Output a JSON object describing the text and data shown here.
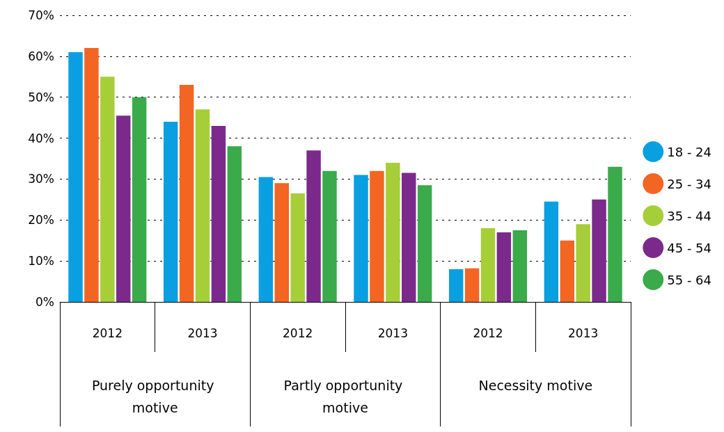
{
  "chart_data": {
    "type": "bar",
    "categories": [
      "2012",
      "2013",
      "2012",
      "2013",
      "2012",
      "2013"
    ],
    "annotations": [
      "Purely opportunity motive",
      "Partly opportunity motive",
      "Necessity motive"
    ],
    "series": [
      {
        "name": "18 - 24",
        "color": "#0a9fe0",
        "values": [
          61,
          44,
          30.5,
          31,
          8,
          24.5
        ]
      },
      {
        "name": "25 - 34",
        "color": "#f26522",
        "values": [
          62,
          53,
          29,
          32,
          8.2,
          15
        ]
      },
      {
        "name": "35 - 44",
        "color": "#a6ce39",
        "values": [
          55,
          47,
          26.5,
          34,
          18,
          19
        ]
      },
      {
        "name": "45 - 54",
        "color": "#7b2a8c",
        "values": [
          45.5,
          43,
          37,
          31.5,
          17,
          25
        ]
      },
      {
        "name": "55 - 64",
        "color": "#3aaa4a",
        "values": [
          50,
          38,
          32,
          28.5,
          17.5,
          33
        ]
      }
    ],
    "ylim": [
      0,
      70
    ],
    "yticks": [
      {
        "value": 0,
        "label": "0%"
      },
      {
        "value": 10,
        "label": "10%"
      },
      {
        "value": 20,
        "label": "20%"
      },
      {
        "value": 30,
        "label": "30%"
      },
      {
        "value": 40,
        "label": "40%"
      },
      {
        "value": 50,
        "label": "50%"
      },
      {
        "value": 60,
        "label": "60%"
      },
      {
        "value": 70,
        "label": "70%"
      }
    ],
    "grid": "y",
    "legend": "right"
  }
}
